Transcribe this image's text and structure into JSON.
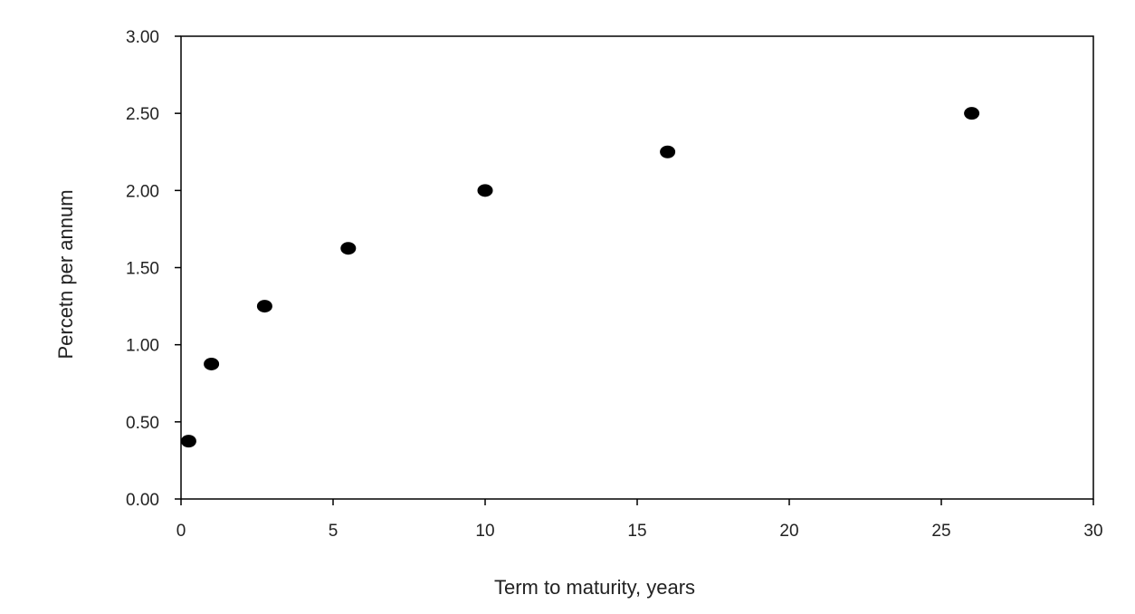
{
  "chart_data": {
    "type": "scatter",
    "title": "",
    "xlabel": "Term to maturity, years",
    "ylabel": "Percetn per annum",
    "xlim": [
      0,
      30
    ],
    "ylim": [
      0,
      3
    ],
    "x_ticks": [
      0,
      5,
      10,
      15,
      20,
      25,
      30
    ],
    "x_tick_labels": [
      "0",
      "5",
      "10",
      "15",
      "20",
      "25",
      "30"
    ],
    "y_ticks": [
      0,
      0.5,
      1,
      1.5,
      2,
      2.5,
      3
    ],
    "y_tick_labels": [
      "0.00",
      "0.50",
      "1.00",
      "1.50",
      "2.00",
      "2.50",
      "3.00"
    ],
    "grid": false,
    "legend": "none",
    "marker_color": "#000000",
    "series": [
      {
        "x": [
          0.25,
          1,
          2.75,
          5.5,
          10,
          16,
          26
        ],
        "y": [
          0.375,
          0.875,
          1.25,
          1.625,
          2.0,
          2.25,
          2.5
        ]
      }
    ]
  }
}
